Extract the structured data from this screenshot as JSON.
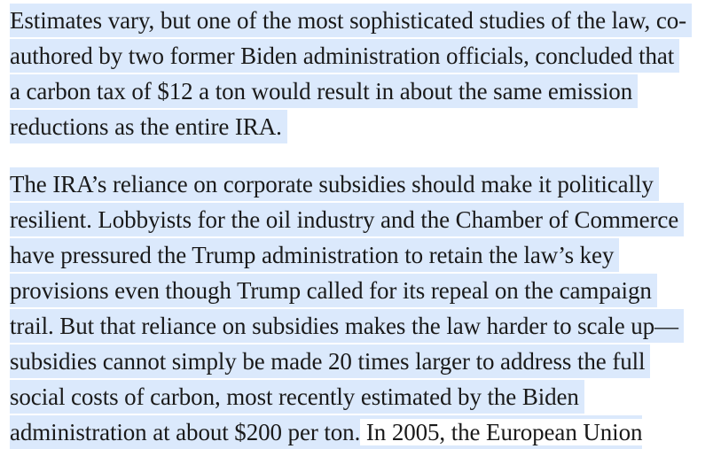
{
  "paragraphs": [
    {
      "lines": [
        "Estimates vary, but one of the most sophisticated studies of the law, co-",
        "authored by two former Biden administration officials, concluded that",
        "a carbon tax of $12 a ton would result in about the same emission",
        "reductions as the entire IRA."
      ]
    },
    {
      "lines": [
        "The IRA’s reliance on corporate subsidies should make it politically",
        "resilient. Lobbyists for the oil industry and the Chamber of Commerce",
        "have pressured the Trump administration to retain the law’s key",
        "provisions even though Trump called for its repeal on the campaign",
        "trail. But that reliance on subsidies makes the law harder to scale up—",
        "subsidies cannot simply be made 20 times larger to address the full",
        "social costs of carbon, most recently estimated by the Biden",
        "administration at about $200 per ton."
      ],
      "unselected_tail": " In 2005, the European Union"
    }
  ],
  "colors": {
    "selection_highlight": "#dbe9fc",
    "text": "#1a1a1a",
    "background": "#ffffff"
  }
}
